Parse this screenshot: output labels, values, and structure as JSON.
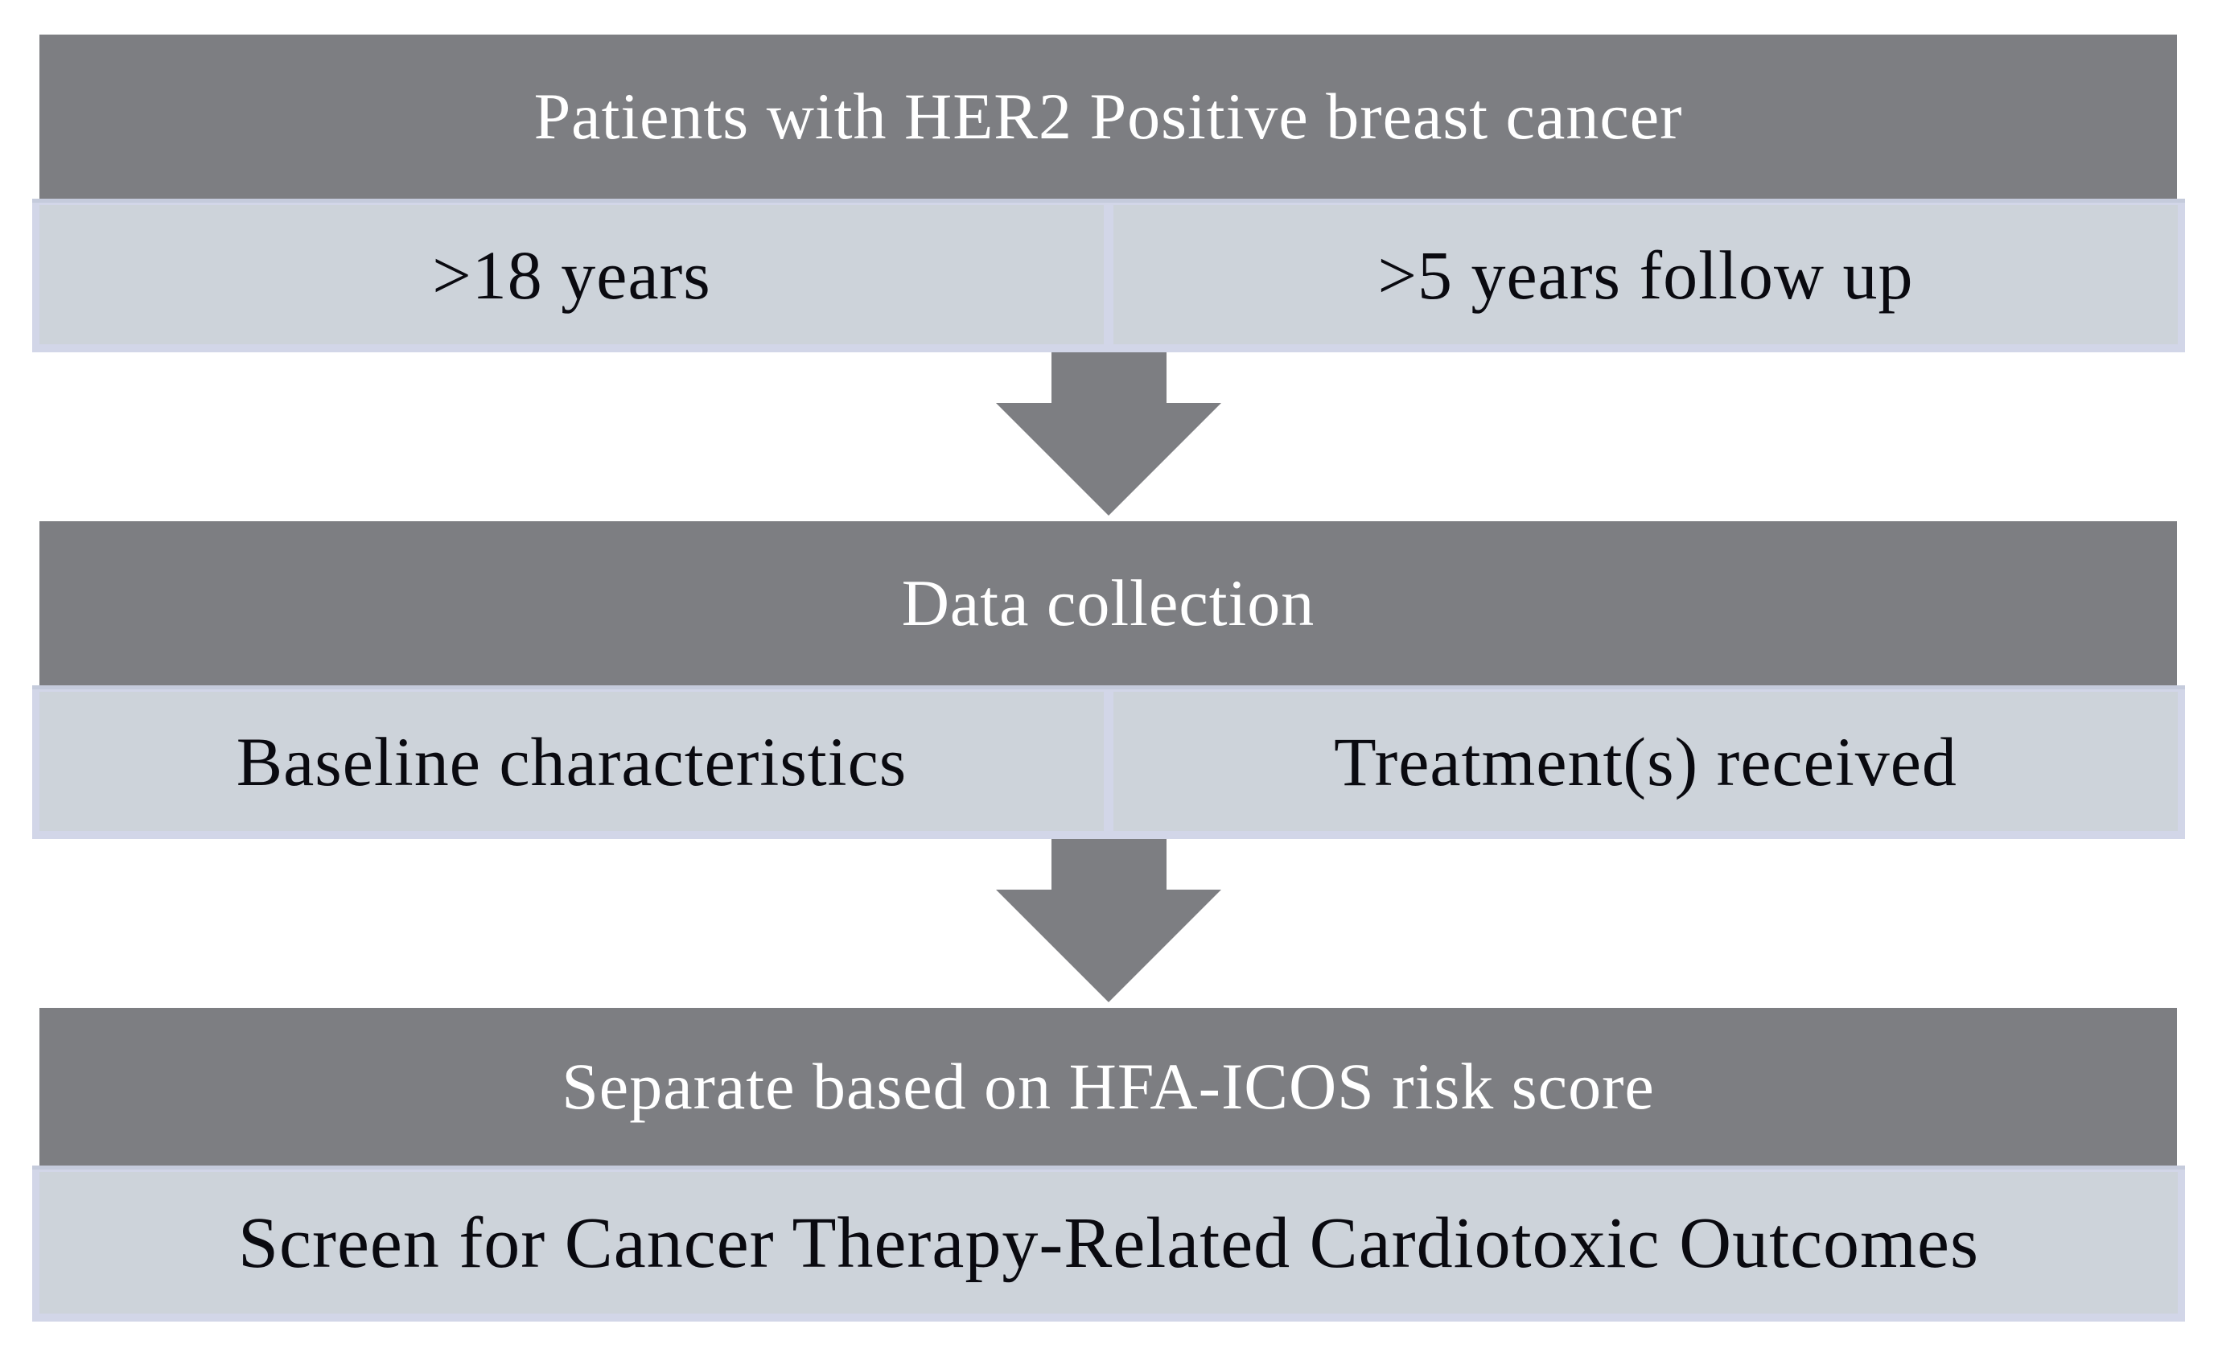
{
  "palette": {
    "page_bg": "#ffffff",
    "header_bg": "#7d7e82",
    "header_text": "#ffffff",
    "cell_bg": "#cdd3da",
    "cell_text": "#0a0a10",
    "band_bg": "#d2d6e8",
    "band_top_line": "#c5cbdc",
    "arrow_color": "#7d7e82"
  },
  "flow": {
    "step1": {
      "header": "Patients with HER2 Positive breast cancer",
      "cells": [
        ">18 years",
        ">5 years follow up"
      ]
    },
    "step2": {
      "header": "Data collection",
      "cells": [
        "Baseline characteristics",
        "Treatment(s) received"
      ]
    },
    "step3": {
      "header": "Separate based on HFA-ICOS risk score",
      "cells": [
        "Screen for Cancer Therapy-Related Cardiotoxic Outcomes"
      ]
    }
  }
}
